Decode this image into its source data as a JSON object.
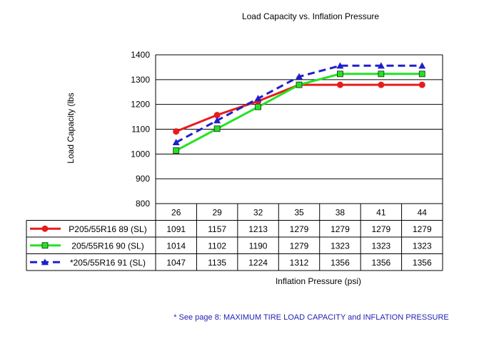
{
  "chart_data": {
    "type": "line",
    "title": "Load Capacity vs. Inflation Pressure",
    "xlabel": "Inflation Pressure (psi)",
    "ylabel": "Load Capacity (lbs",
    "categories": [
      "26",
      "29",
      "32",
      "35",
      "38",
      "41",
      "44"
    ],
    "ylim": [
      800,
      1400
    ],
    "yticks": [
      "800",
      "900",
      "1000",
      "1100",
      "1200",
      "1300",
      "1400"
    ],
    "grid": "horizontal",
    "legend": "data-table",
    "series": [
      {
        "name": "P205/55R16 89 (SL)",
        "values": [
          1091,
          1157,
          1213,
          1279,
          1279,
          1279,
          1279
        ],
        "color": "#e81c1c",
        "marker": "circle",
        "dash": "solid"
      },
      {
        "name": "205/55R16 90 (SL)",
        "values": [
          1014,
          1102,
          1190,
          1279,
          1323,
          1323,
          1323
        ],
        "color": "#22e322",
        "marker": "square",
        "dash": "solid"
      },
      {
        "name": "*205/55R16 91 (SL)",
        "values": [
          1047,
          1135,
          1224,
          1312,
          1356,
          1356,
          1356
        ],
        "color": "#1f1fcc",
        "marker": "triangle",
        "dash": "dashed"
      }
    ],
    "footnote": "* See page 8:  MAXIMUM TIRE LOAD CAPACITY and INFLATION PRESSURE"
  }
}
